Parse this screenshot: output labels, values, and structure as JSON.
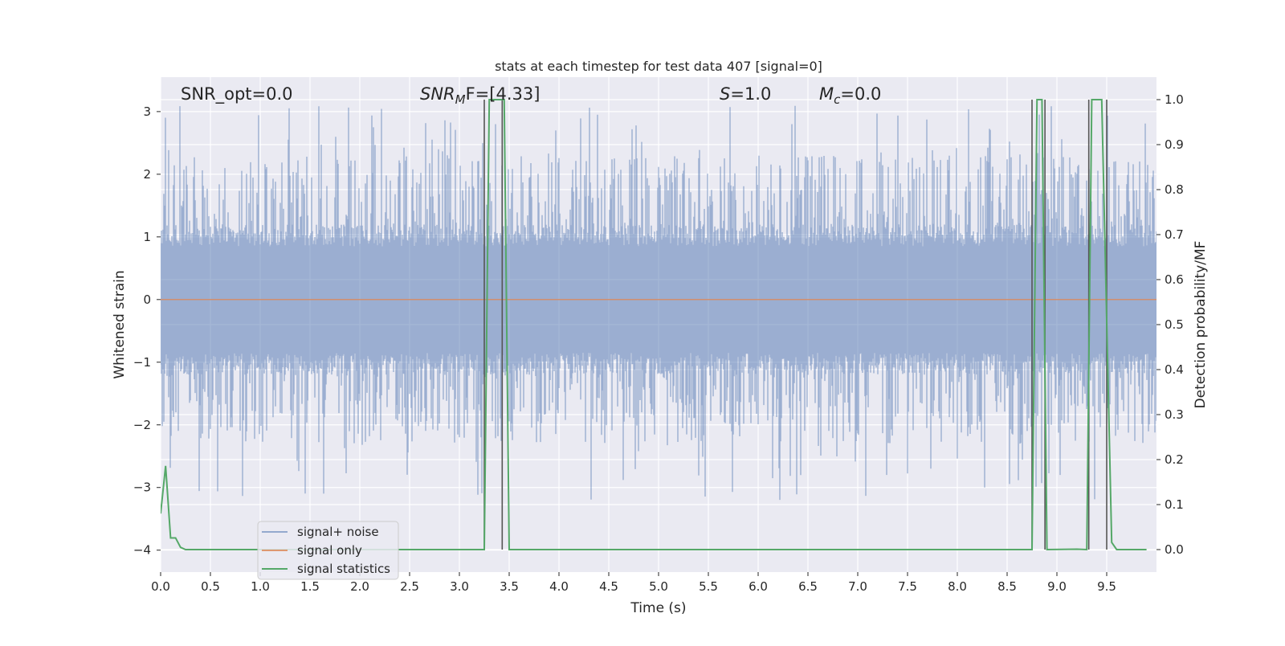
{
  "chart_data": {
    "type": "line",
    "title": "stats at each timestep for test data 407 [signal=0]",
    "xlabel": "Time (s)",
    "ylabel_left": "Whitened strain",
    "ylabel_right": "Detection probability/MF",
    "xlim": [
      0.0,
      10.0
    ],
    "ylim_left": [
      -4.35,
      3.55
    ],
    "ylim_right": [
      -0.05,
      1.05
    ],
    "x_ticks": [
      0.0,
      0.5,
      1.0,
      1.5,
      2.0,
      2.5,
      3.0,
      3.5,
      4.0,
      4.5,
      5.0,
      5.5,
      6.0,
      6.5,
      7.0,
      7.5,
      8.0,
      8.5,
      9.0,
      9.5
    ],
    "x_tick_labels": [
      "0.0",
      "0.5",
      "1.0",
      "1.5",
      "2.0",
      "2.5",
      "3.0",
      "3.5",
      "4.0",
      "4.5",
      "5.0",
      "5.5",
      "6.0",
      "6.5",
      "7.0",
      "7.5",
      "8.0",
      "8.5",
      "9.0",
      "9.5"
    ],
    "y_left_ticks": [
      3,
      2,
      1,
      0,
      -1,
      -2,
      -3,
      -4
    ],
    "y_left_tick_labels": [
      "3",
      "2",
      "1",
      "0",
      "−1",
      "−2",
      "−3",
      "−4"
    ],
    "y_right_ticks": [
      1.0,
      0.9,
      0.8,
      0.7,
      0.6,
      0.5,
      0.4,
      0.3,
      0.2,
      0.1,
      0.0
    ],
    "y_right_tick_labels": [
      "1.0",
      "0.9",
      "0.8",
      "0.7",
      "0.6",
      "0.5",
      "0.4",
      "0.3",
      "0.2",
      "0.1",
      "0.0"
    ],
    "grid": true,
    "legend_position": "lower-left",
    "series": [
      {
        "name": "signal+ noise",
        "axis": "left",
        "color": "#4c72b0",
        "style": "dense noise band, roughly ±1 strain with spikes to about ±3"
      },
      {
        "name": "signal only",
        "axis": "left",
        "color": "#dd8452",
        "x": [
          0.0,
          10.0
        ],
        "y": [
          0.0,
          0.0
        ]
      },
      {
        "name": "signal statistics",
        "axis": "right",
        "color": "#55a868",
        "x": [
          0.0,
          0.05,
          0.1,
          0.15,
          0.2,
          0.25,
          0.3,
          3.25,
          3.3,
          3.45,
          3.5,
          8.75,
          8.8,
          8.85,
          8.9,
          9.2,
          9.3,
          9.35,
          9.45,
          9.55,
          9.6,
          9.9
        ],
        "y": [
          0.08,
          0.186,
          0.026,
          0.026,
          0.005,
          0.0,
          0.0,
          0.0,
          1.0,
          1.0,
          0.0,
          0.0,
          1.0,
          1.0,
          0.0,
          0.001,
          0.0,
          1.0,
          1.0,
          0.016,
          0.0,
          0.0
        ]
      }
    ],
    "vertical_lines": {
      "color": "#555555",
      "x": [
        3.25,
        3.43,
        8.75,
        8.88,
        9.32,
        9.5
      ]
    },
    "annotations": [
      {
        "id": "snr_opt",
        "text": "SNR_opt=0.0"
      },
      {
        "id": "snr_mf",
        "symbol": "SNR",
        "subscript": "M",
        "suffix": "F=[4.33]"
      },
      {
        "id": "s",
        "symbol": "S",
        "suffix": "=1.0"
      },
      {
        "id": "mc",
        "symbol": "M",
        "subscript": "c",
        "suffix": "=0.0"
      }
    ]
  },
  "style": {
    "background": "#ffffff",
    "axes_face": "#eaeaf2",
    "grid_color": "#ffffff"
  }
}
